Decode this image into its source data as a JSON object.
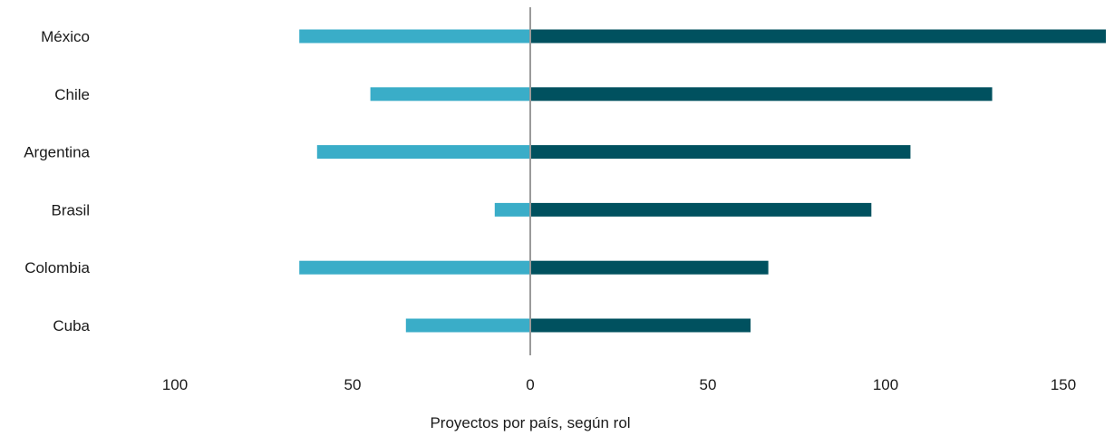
{
  "chart_data": {
    "type": "bar",
    "orientation": "horizontal",
    "diverging": true,
    "categories": [
      "México",
      "Chile",
      "Argentina",
      "Brasil",
      "Colombia",
      "Cuba"
    ],
    "series": [
      {
        "color": "#3aadc8",
        "side": "left",
        "values": [
          65,
          45,
          60,
          10,
          65,
          35
        ]
      },
      {
        "color": "#00515f",
        "side": "right",
        "values": [
          162,
          130,
          107,
          96,
          67,
          62
        ]
      }
    ],
    "xticks": [
      {
        "value": -100,
        "label": "100"
      },
      {
        "value": -50,
        "label": "50"
      },
      {
        "value": 0,
        "label": "0"
      },
      {
        "value": 50,
        "label": "50"
      },
      {
        "value": 100,
        "label": "100"
      },
      {
        "value": 150,
        "label": "150"
      }
    ],
    "xlim": [
      -100,
      162
    ],
    "xlabel": "Proyectos por país, según rol",
    "ylabel": "",
    "title": "",
    "grid": false,
    "center_line_color": "#9a9a9a"
  }
}
